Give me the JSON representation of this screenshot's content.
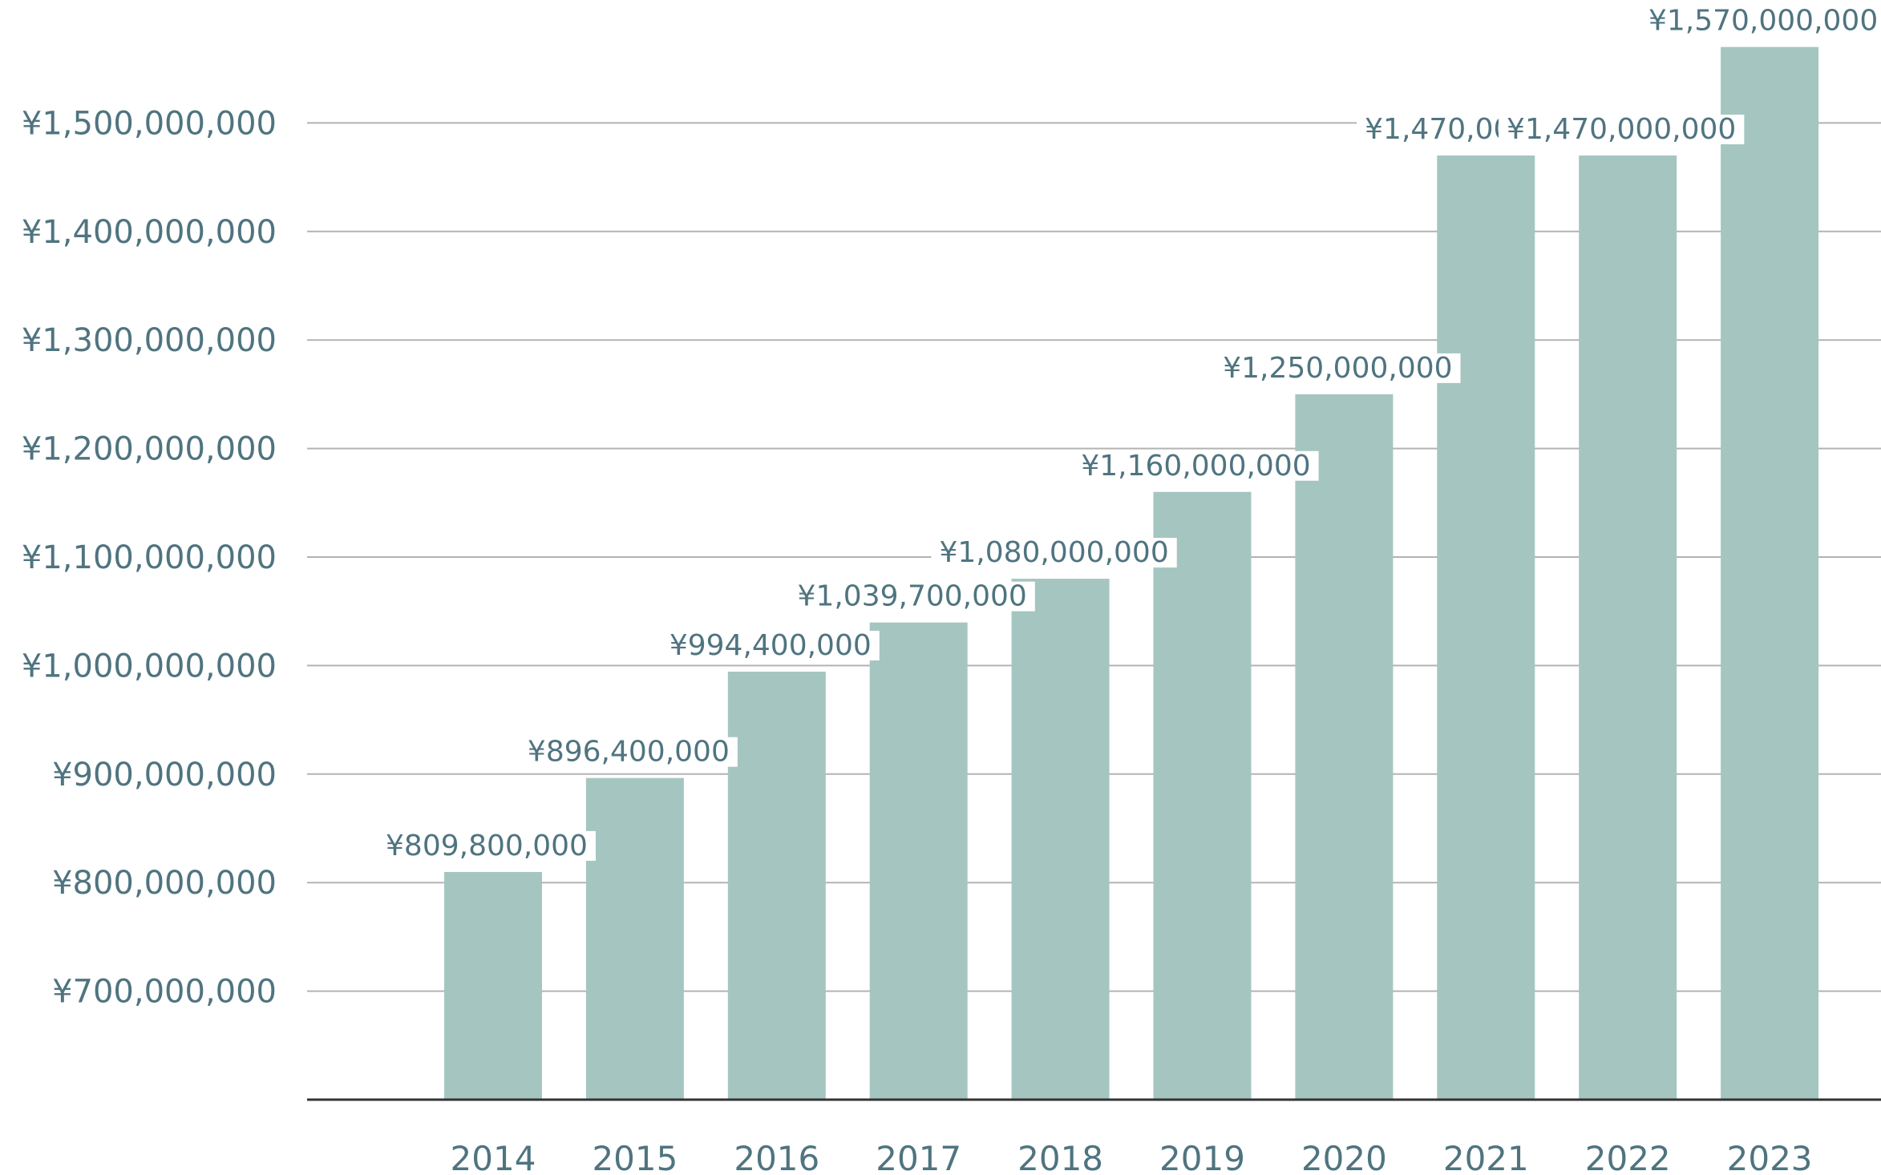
{
  "chart_data": {
    "type": "bar",
    "title": "",
    "xlabel": "",
    "ylabel": "",
    "categories": [
      "2014",
      "2015",
      "2016",
      "2017",
      "2018",
      "2019",
      "2020",
      "2021",
      "2022",
      "2023"
    ],
    "values": [
      809800000,
      896400000,
      994400000,
      1039700000,
      1080000000,
      1160000000,
      1250000000,
      1470000000,
      1470000000,
      1570000000
    ],
    "data_labels": [
      "¥809,800,000",
      "¥896,400,000",
      "¥994,400,000",
      "¥1,039,700,000",
      "¥1,080,000,000",
      "¥1,160,000,000",
      "¥1,250,000,000",
      "¥1,470,000,000",
      "¥1,470,000,000",
      "¥1,570,000,000"
    ],
    "y_ticks": [
      700000000,
      800000000,
      900000000,
      1000000000,
      1100000000,
      1200000000,
      1300000000,
      1400000000,
      1500000000
    ],
    "y_tick_labels": [
      "¥700,000,000",
      "¥800,000,000",
      "¥900,000,000",
      "¥1,000,000,000",
      "¥1,100,000,000",
      "¥1,200,000,000",
      "¥1,300,000,000",
      "¥1,400,000,000",
      "¥1,500,000,000"
    ],
    "ylim": [
      600000000,
      1600000000
    ],
    "grid": true,
    "legend": "none",
    "colors": {
      "bar": "#a5c6c0",
      "text": "#4f7480",
      "grid": "#b3b3b3",
      "axis": "#333333"
    }
  }
}
